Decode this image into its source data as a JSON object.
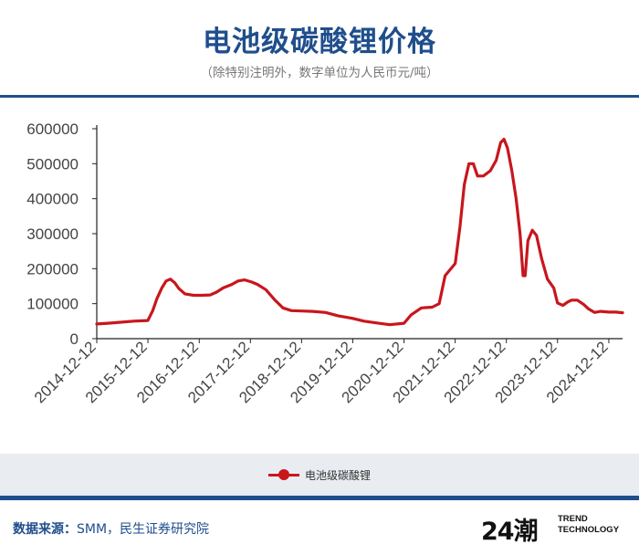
{
  "header": {
    "title": "电池级碳酸锂价格",
    "subtitle": "（除特别注明外，数字单位为人民币元/吨）"
  },
  "footer": {
    "source_label": "数据来源：",
    "source_text": "SMM，民生证券研究院",
    "logo_mark": "24潮",
    "logo_line1": "TREND",
    "logo_line2": "TECHNOLOGY"
  },
  "colors": {
    "brand": "#1f4e8c",
    "series": "#c8161d",
    "legend_band": "#e9ecf1"
  },
  "chart_data": {
    "type": "line",
    "title": "",
    "xlabel": "",
    "ylabel": "",
    "ylim": [
      0,
      600000
    ],
    "y_ticks": [
      0,
      100000,
      200000,
      300000,
      400000,
      500000,
      600000
    ],
    "x_ticks": [
      "2014-12-12",
      "2015-12-12",
      "2016-12-12",
      "2017-12-12",
      "2018-12-12",
      "2019-12-12",
      "2020-12-12",
      "2021-12-12",
      "2022-12-12",
      "2023-12-12",
      "2024-12-12"
    ],
    "x_range": [
      "2014-12-12",
      "2025-03-20"
    ],
    "grid": false,
    "legend": "bottom",
    "series": [
      {
        "name": "电池级碳酸锂",
        "color": "#c8161d",
        "points": [
          [
            "2014-12-12",
            42000
          ],
          [
            "2015-03-01",
            44000
          ],
          [
            "2015-06-01",
            47000
          ],
          [
            "2015-09-01",
            50000
          ],
          [
            "2015-12-12",
            52000
          ],
          [
            "2016-01-15",
            80000
          ],
          [
            "2016-02-15",
            115000
          ],
          [
            "2016-03-20",
            145000
          ],
          [
            "2016-04-20",
            165000
          ],
          [
            "2016-05-20",
            170000
          ],
          [
            "2016-06-20",
            160000
          ],
          [
            "2016-07-20",
            143000
          ],
          [
            "2016-09-01",
            128000
          ],
          [
            "2016-11-01",
            124000
          ],
          [
            "2017-01-01",
            124000
          ],
          [
            "2017-03-01",
            125000
          ],
          [
            "2017-04-15",
            133000
          ],
          [
            "2017-06-01",
            145000
          ],
          [
            "2017-08-01",
            155000
          ],
          [
            "2017-09-15",
            165000
          ],
          [
            "2017-11-01",
            168000
          ],
          [
            "2017-12-20",
            162000
          ],
          [
            "2018-02-01",
            155000
          ],
          [
            "2018-04-01",
            140000
          ],
          [
            "2018-06-01",
            112000
          ],
          [
            "2018-08-01",
            88000
          ],
          [
            "2018-10-01",
            80000
          ],
          [
            "2018-12-12",
            79000
          ],
          [
            "2019-03-01",
            78000
          ],
          [
            "2019-06-01",
            75000
          ],
          [
            "2019-09-01",
            65000
          ],
          [
            "2019-12-12",
            58000
          ],
          [
            "2020-03-01",
            50000
          ],
          [
            "2020-06-01",
            45000
          ],
          [
            "2020-09-01",
            40000
          ],
          [
            "2020-12-12",
            44000
          ],
          [
            "2021-02-01",
            68000
          ],
          [
            "2021-04-15",
            88000
          ],
          [
            "2021-07-01",
            90000
          ],
          [
            "2021-08-20",
            100000
          ],
          [
            "2021-10-01",
            180000
          ],
          [
            "2021-12-12",
            215000
          ],
          [
            "2022-01-15",
            320000
          ],
          [
            "2022-02-15",
            440000
          ],
          [
            "2022-03-20",
            500000
          ],
          [
            "2022-04-20",
            500000
          ],
          [
            "2022-05-20",
            465000
          ],
          [
            "2022-07-01",
            465000
          ],
          [
            "2022-08-20",
            480000
          ],
          [
            "2022-10-01",
            510000
          ],
          [
            "2022-11-01",
            560000
          ],
          [
            "2022-11-25",
            570000
          ],
          [
            "2022-12-20",
            545000
          ],
          [
            "2023-01-20",
            480000
          ],
          [
            "2023-02-20",
            400000
          ],
          [
            "2023-03-20",
            300000
          ],
          [
            "2023-04-10",
            180000
          ],
          [
            "2023-04-25",
            180000
          ],
          [
            "2023-05-15",
            280000
          ],
          [
            "2023-06-15",
            310000
          ],
          [
            "2023-07-15",
            295000
          ],
          [
            "2023-08-20",
            230000
          ],
          [
            "2023-10-01",
            170000
          ],
          [
            "2023-11-15",
            145000
          ],
          [
            "2023-12-12",
            102000
          ],
          [
            "2024-01-20",
            95000
          ],
          [
            "2024-02-20",
            104000
          ],
          [
            "2024-03-20",
            110000
          ],
          [
            "2024-05-01",
            110000
          ],
          [
            "2024-06-15",
            98000
          ],
          [
            "2024-07-20",
            85000
          ],
          [
            "2024-09-01",
            75000
          ],
          [
            "2024-10-15",
            78000
          ],
          [
            "2024-12-12",
            76000
          ],
          [
            "2025-02-01",
            76000
          ],
          [
            "2025-03-20",
            74000
          ]
        ]
      }
    ]
  }
}
